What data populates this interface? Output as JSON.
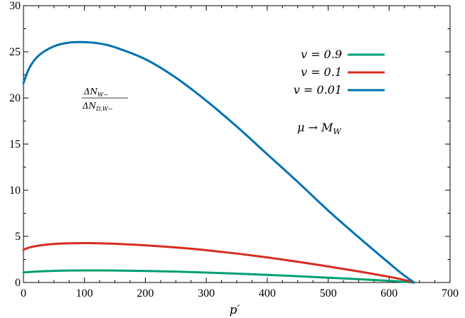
{
  "chart_data": {
    "type": "line",
    "xlabel": "p′",
    "ylabel": "",
    "xlim": [
      0,
      700
    ],
    "ylim": [
      0,
      30
    ],
    "x_ticks": [
      0,
      100,
      200,
      300,
      400,
      500,
      600,
      700
    ],
    "y_ticks": [
      0,
      5,
      10,
      15,
      20,
      25,
      30
    ],
    "grid": false,
    "legend_position": "top-right",
    "annotations": {
      "ratio_numerator": "ΔN",
      "ratio_numerator_sub": "W−",
      "ratio_denominator": "ΔN",
      "ratio_denominator_sub": "D,W−",
      "scale_text": "μ → M",
      "scale_sub": "W"
    },
    "series": [
      {
        "name": "v = 0.9",
        "color": "#009e73",
        "x": [
          0,
          25,
          50,
          75,
          100,
          125,
          150,
          200,
          250,
          300,
          350,
          400,
          450,
          500,
          550,
          600,
          620,
          641
        ],
        "y": [
          1.1,
          1.2,
          1.26,
          1.3,
          1.31,
          1.31,
          1.3,
          1.25,
          1.18,
          1.08,
          0.96,
          0.83,
          0.68,
          0.52,
          0.36,
          0.18,
          0.1,
          0.0
        ]
      },
      {
        "name": "v = 0.1",
        "color": "#d62d20",
        "x": [
          0,
          10,
          25,
          50,
          75,
          100,
          125,
          150,
          200,
          250,
          300,
          350,
          400,
          450,
          500,
          550,
          600,
          620,
          641
        ],
        "y": [
          3.55,
          3.8,
          4.0,
          4.18,
          4.25,
          4.27,
          4.25,
          4.2,
          4.03,
          3.8,
          3.5,
          3.14,
          2.72,
          2.25,
          1.74,
          1.2,
          0.62,
          0.35,
          0.0
        ]
      },
      {
        "name": "v = 0.01",
        "color": "#0072b2",
        "x": [
          0,
          10,
          25,
          50,
          75,
          100,
          125,
          150,
          200,
          250,
          300,
          350,
          400,
          450,
          500,
          550,
          600,
          620,
          641
        ],
        "y": [
          21.6,
          23.3,
          24.6,
          25.6,
          26.0,
          26.05,
          25.9,
          25.5,
          24.2,
          22.2,
          19.7,
          16.9,
          13.9,
          10.9,
          7.8,
          4.9,
          2.1,
          1.0,
          0.0
        ]
      }
    ]
  }
}
